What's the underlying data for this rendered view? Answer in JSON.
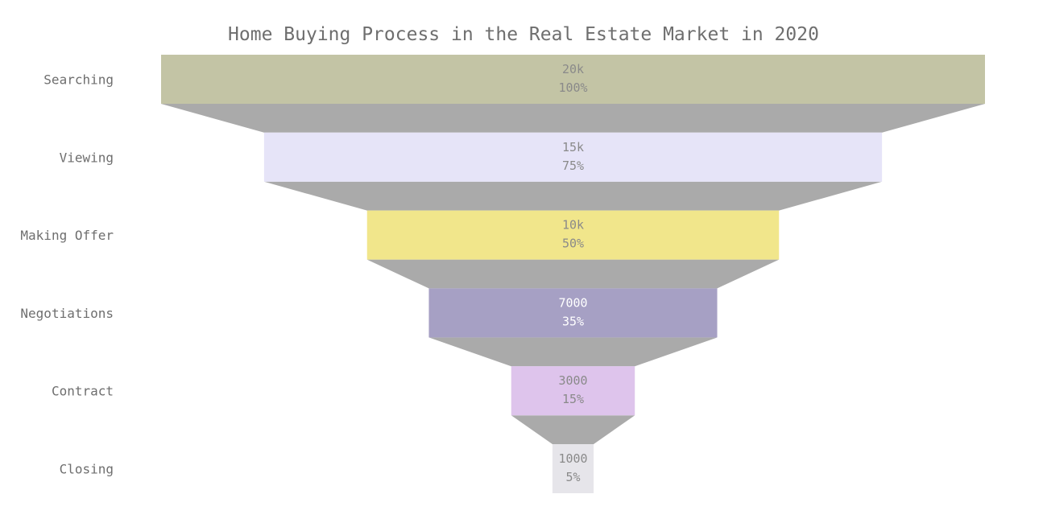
{
  "chart_data": {
    "type": "funnel",
    "title": "Home Buying Process in the Real Estate Market in 2020",
    "stages": [
      "Searching",
      "Viewing",
      "Making Offer",
      "Negotiations",
      "Contract",
      "Closing"
    ],
    "values": [
      20000,
      15000,
      10000,
      7000,
      3000,
      1000
    ],
    "value_labels": [
      "20k",
      "15k",
      "10k",
      "7000",
      "3000",
      "1000"
    ],
    "percent_labels": [
      "100%",
      "75%",
      "50%",
      "35%",
      "15%",
      "5%"
    ],
    "colors": [
      "#c3c4a5",
      "#e6e4f8",
      "#f1e68b",
      "#a6a0c4",
      "#dec4ec",
      "#e6e5ea"
    ],
    "label_colors": [
      "#8a8a8a",
      "#8a8a8a",
      "#8a8a8a",
      "#ffffff",
      "#8a8a8a",
      "#8a8a8a"
    ],
    "connector_color": "#aaaaaa"
  }
}
